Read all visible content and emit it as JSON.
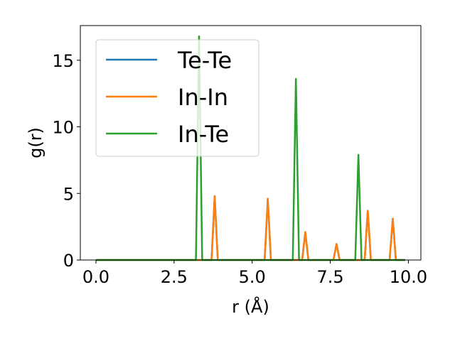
{
  "chart_data": {
    "type": "line",
    "xlabel": "r (Å)",
    "ylabel": "g(r)",
    "xlim": [
      -0.5,
      10.4
    ],
    "ylim": [
      0,
      17.6
    ],
    "xticks": [
      0.0,
      2.5,
      5.0,
      7.5,
      10.0
    ],
    "xtick_labels": [
      "0.0",
      "2.5",
      "5.0",
      "7.5",
      "10.0"
    ],
    "yticks": [
      0,
      5,
      10,
      15
    ],
    "ytick_labels": [
      "0",
      "5",
      "10",
      "15"
    ],
    "grid": false,
    "legend_position": "top-left",
    "series": [
      {
        "name": "Te-Te",
        "color": "#1f77b4",
        "x": [
          0.0,
          3.7,
          3.8,
          3.9,
          5.4,
          5.5,
          5.6,
          6.6,
          6.7,
          6.8,
          7.6,
          7.7,
          7.8,
          8.6,
          8.7,
          8.8,
          9.4,
          9.5,
          9.6,
          9.9
        ],
        "y": [
          0,
          0,
          4.8,
          0,
          0,
          4.6,
          0,
          0,
          2.1,
          0,
          0,
          1.2,
          0,
          0,
          3.7,
          0,
          0,
          3.1,
          0,
          0
        ]
      },
      {
        "name": "In-In",
        "color": "#ff7f0e",
        "x": [
          0.0,
          3.7,
          3.8,
          3.9,
          5.4,
          5.5,
          5.6,
          6.6,
          6.7,
          6.8,
          7.6,
          7.7,
          7.8,
          8.6,
          8.7,
          8.8,
          9.4,
          9.5,
          9.6,
          9.9
        ],
        "y": [
          0,
          0,
          4.8,
          0,
          0,
          4.6,
          0,
          0,
          2.1,
          0,
          0,
          1.2,
          0,
          0,
          3.7,
          0,
          0,
          3.1,
          0,
          0
        ]
      },
      {
        "name": "In-Te",
        "color": "#2ca02c",
        "x": [
          0.0,
          3.2,
          3.3,
          3.4,
          6.3,
          6.4,
          6.5,
          8.3,
          8.4,
          8.5,
          9.9
        ],
        "y": [
          0,
          0,
          16.8,
          0,
          0,
          13.6,
          0,
          0,
          7.9,
          0,
          0
        ]
      }
    ]
  }
}
